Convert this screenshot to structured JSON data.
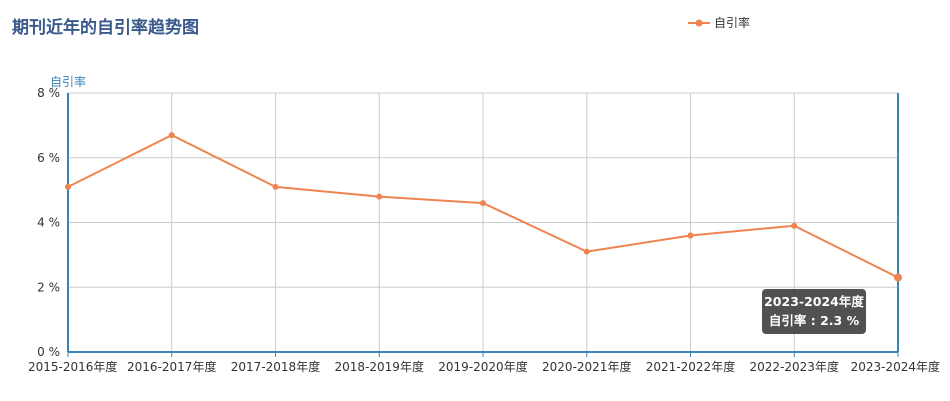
{
  "title": "期刊近年的自引率趋势图",
  "legend": {
    "label": "自引率"
  },
  "colors": {
    "series": "#f08450",
    "axis": "#3a84b8",
    "grid": "#cccccc",
    "title": "#3a5a8c"
  },
  "tooltip": {
    "header": "2023-2024年度",
    "line": "自引率 : 2.3 %"
  },
  "chart_data": {
    "type": "line",
    "title": "期刊近年的自引率趋势图",
    "ylabel": "自引率",
    "xlabel": "",
    "ylim": [
      0,
      8
    ],
    "y_ticks": [
      "0 %",
      "2 %",
      "4 %",
      "6 %",
      "8 %"
    ],
    "grid": true,
    "legend_position": "top-right",
    "categories": [
      "2015-2016年度",
      "2016-2017年度",
      "2017-2018年度",
      "2018-2019年度",
      "2019-2020年度",
      "2020-2021年度",
      "2021-2022年度",
      "2022-2023年度",
      "2023-2024年度"
    ],
    "series": [
      {
        "name": "自引率",
        "values": [
          5.1,
          6.7,
          5.1,
          4.8,
          4.6,
          3.1,
          3.6,
          3.9,
          2.3
        ]
      }
    ]
  }
}
